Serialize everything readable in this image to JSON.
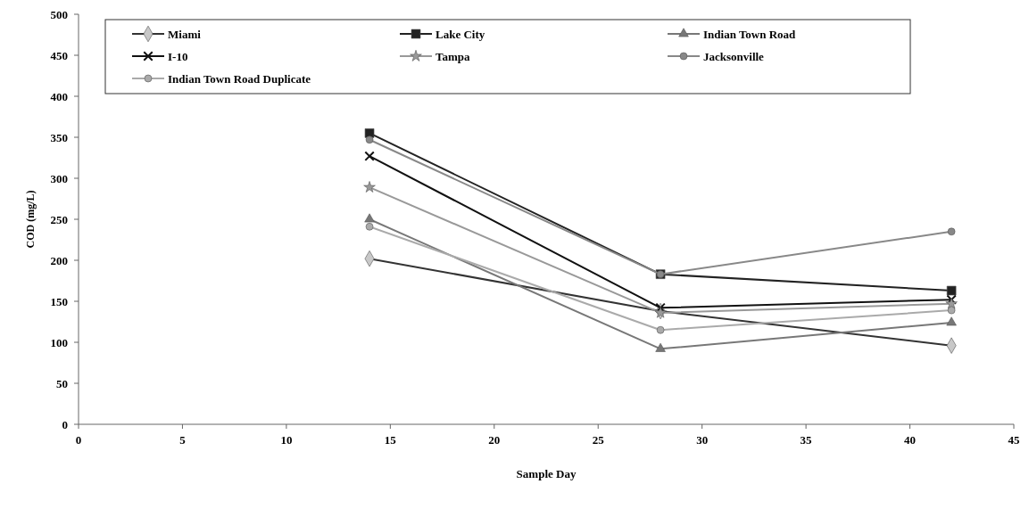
{
  "chart_data": {
    "type": "line",
    "xlabel": "Sample Day",
    "ylabel": "COD (mg/L)",
    "x": [
      14,
      28,
      42
    ],
    "xlim": [
      0,
      45
    ],
    "xticks": [
      0,
      5,
      10,
      15,
      20,
      25,
      30,
      35,
      40,
      45
    ],
    "ylim": [
      0,
      500
    ],
    "yticks": [
      0,
      50,
      100,
      150,
      200,
      250,
      300,
      350,
      400,
      450,
      500
    ],
    "grid": false,
    "legend": "top",
    "line_style": "solid",
    "series": [
      {
        "name": "Miami",
        "color": "#c8c8c8",
        "marker": "diamond",
        "values": [
          202,
          138,
          96
        ]
      },
      {
        "name": "Lake City",
        "color": "#222222",
        "marker": "square",
        "values": [
          355,
          183,
          163
        ]
      },
      {
        "name": "Indian Town Road",
        "color": "#777777",
        "marker": "triangle",
        "values": [
          250,
          92,
          124
        ]
      },
      {
        "name": "I-10",
        "color": "#111111",
        "marker": "cross",
        "values": [
          327,
          142,
          152
        ]
      },
      {
        "name": "Tampa",
        "color": "#999999",
        "marker": "star",
        "values": [
          289,
          136,
          147
        ]
      },
      {
        "name": "Jacksonville",
        "color": "#888888",
        "marker": "circle",
        "values": [
          347,
          183,
          235
        ]
      },
      {
        "name": "Indian Town Road Duplicate",
        "color": "#aaaaaa",
        "marker": "circle",
        "values": [
          241,
          115,
          139
        ]
      }
    ]
  }
}
